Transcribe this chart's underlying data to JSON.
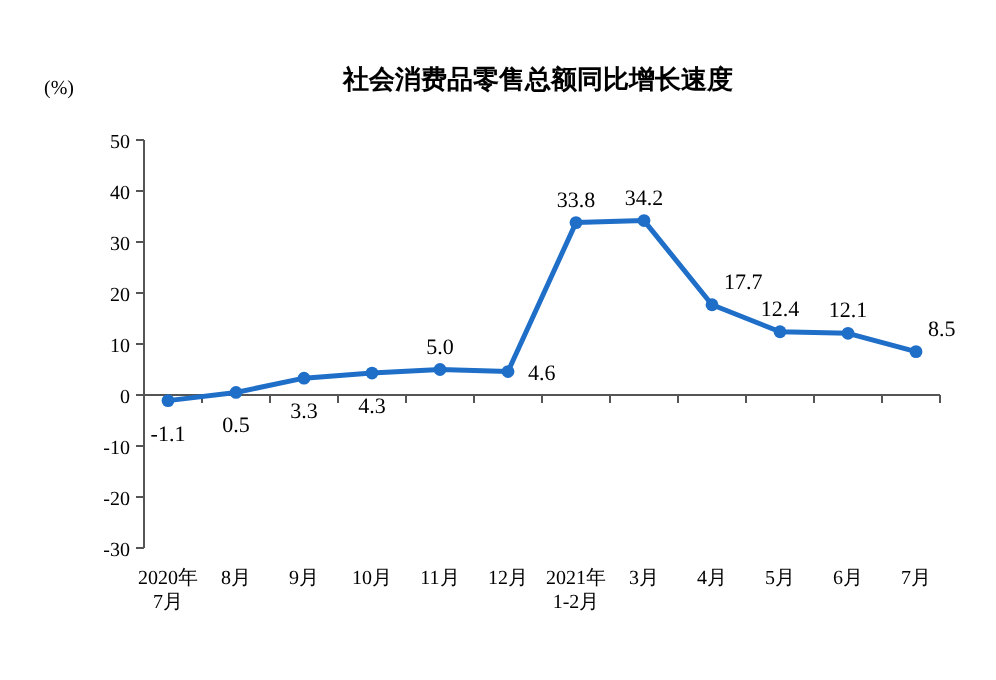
{
  "chart_data": {
    "type": "line",
    "title": "社会消费品零售总额同比增长速度",
    "ylabel": "(%)",
    "categories": [
      "2020年\n7月",
      "8月",
      "9月",
      "10月",
      "11月",
      "12月",
      "2021年\n1-2月",
      "3月",
      "4月",
      "5月",
      "6月",
      "7月"
    ],
    "series": [
      {
        "color": "#1f6fc8",
        "values": [
          -1.1,
          0.5,
          3.3,
          4.3,
          5.0,
          4.6,
          33.8,
          34.2,
          17.7,
          12.4,
          12.1,
          8.5
        ],
        "value_labels": [
          "-1.1",
          "0.5",
          "3.3",
          "4.3",
          "5.0",
          "4.6",
          "33.8",
          "34.2",
          "17.7",
          "12.4",
          "12.1",
          "8.5"
        ]
      }
    ],
    "ylim": [
      -30,
      50
    ],
    "yticks": [
      -30,
      -20,
      -10,
      0,
      10,
      20,
      30,
      40,
      50
    ],
    "marker": "circle",
    "line_style": "solid"
  }
}
